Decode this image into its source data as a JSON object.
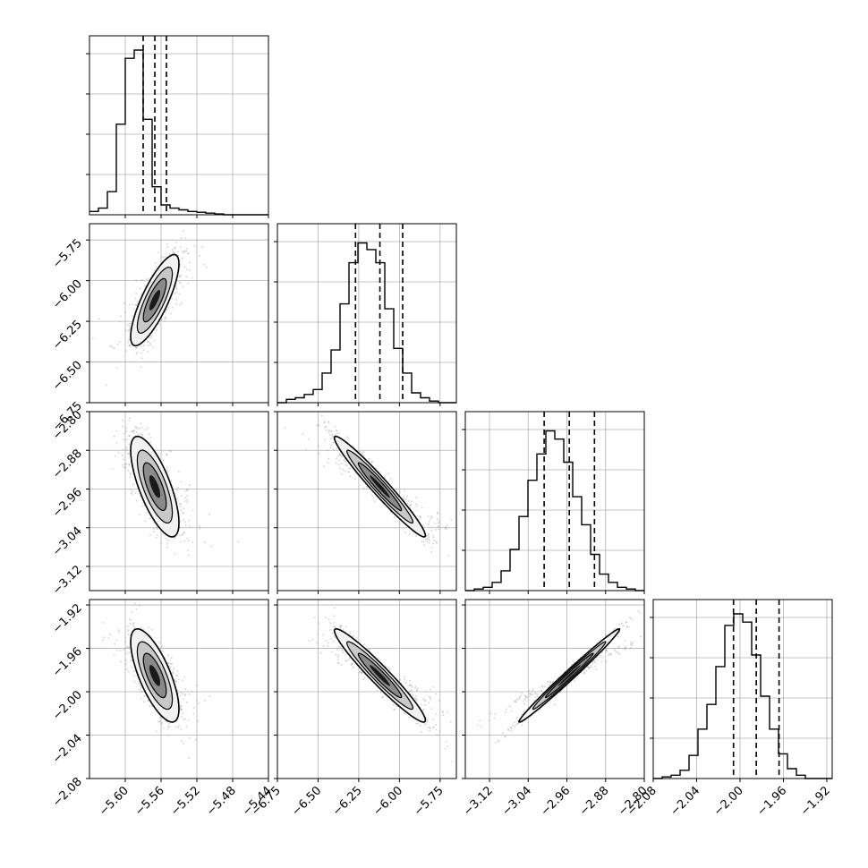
{
  "chart_data": {
    "type": "corner",
    "grid": true,
    "quantiles_shown": [
      0.16,
      0.5,
      0.84
    ],
    "parameters": [
      {
        "mean": -5.567,
        "sd": 0.0135,
        "range": [
          -5.64,
          -5.44
        ],
        "ticks": [
          -5.6,
          -5.56,
          -5.52,
          -5.48,
          -5.44
        ],
        "tick_labels": [
          "−5.60",
          "−5.56",
          "−5.52",
          "−5.48",
          "−5.44"
        ],
        "quantiles": [
          -5.58,
          -5.567,
          -5.554
        ],
        "hist": [
          0.02,
          0.04,
          0.14,
          0.55,
          0.95,
          1.0,
          0.58,
          0.17,
          0.06,
          0.04,
          0.03,
          0.02,
          0.015,
          0.01,
          0.005,
          0.0,
          0.0,
          0.0,
          0.0,
          0.0
        ]
      },
      {
        "mean": -6.12,
        "sd": 0.14,
        "range": [
          -6.75,
          -5.65
        ],
        "ticks": [
          -6.75,
          -6.5,
          -6.25,
          -6.0,
          -5.75
        ],
        "tick_labels": [
          "−6.75",
          "−6.50",
          "−6.25",
          "−6.00",
          "−5.75"
        ],
        "quantiles": [
          -6.27,
          -6.12,
          -5.98
        ],
        "hist": [
          0.0,
          0.02,
          0.03,
          0.05,
          0.08,
          0.18,
          0.32,
          0.6,
          0.85,
          0.97,
          0.93,
          0.85,
          0.57,
          0.33,
          0.18,
          0.06,
          0.03,
          0.01,
          0.0,
          0.0
        ]
      },
      {
        "mean": -2.955,
        "sd": 0.052,
        "range": [
          -3.17,
          -2.8
        ],
        "ticks": [
          -3.12,
          -3.04,
          -2.96,
          -2.88,
          -2.8
        ],
        "tick_labels": [
          "−3.12",
          "−3.04",
          "−2.96",
          "−2.88",
          "−2.80"
        ],
        "quantiles": [
          -3.007,
          -2.955,
          -2.903
        ],
        "hist": [
          0.0,
          0.01,
          0.02,
          0.05,
          0.12,
          0.25,
          0.45,
          0.67,
          0.83,
          0.97,
          0.92,
          0.78,
          0.57,
          0.4,
          0.22,
          0.1,
          0.05,
          0.02,
          0.01,
          0.0
        ]
      },
      {
        "mean": -1.985,
        "sd": 0.0215,
        "range": [
          -2.08,
          -1.915
        ],
        "ticks": [
          -2.08,
          -2.04,
          -2.0,
          -1.96,
          -1.92
        ],
        "tick_labels": [
          "−2.08",
          "−2.04",
          "−2.00",
          "−1.96",
          "−1.92"
        ],
        "quantiles": [
          -2.006,
          -1.985,
          -1.964
        ],
        "hist": [
          0.0,
          0.01,
          0.02,
          0.05,
          0.14,
          0.3,
          0.45,
          0.68,
          0.93,
          1.0,
          0.95,
          0.75,
          0.5,
          0.3,
          0.15,
          0.06,
          0.02,
          0.0,
          0.0,
          0.0
        ]
      }
    ],
    "correlations": [
      [
        0,
        1,
        0.8
      ],
      [
        0,
        2,
        -0.72
      ],
      [
        0,
        3,
        -0.72
      ],
      [
        1,
        2,
        -0.97
      ],
      [
        1,
        3,
        -0.96
      ],
      [
        2,
        3,
        0.99
      ]
    ]
  }
}
